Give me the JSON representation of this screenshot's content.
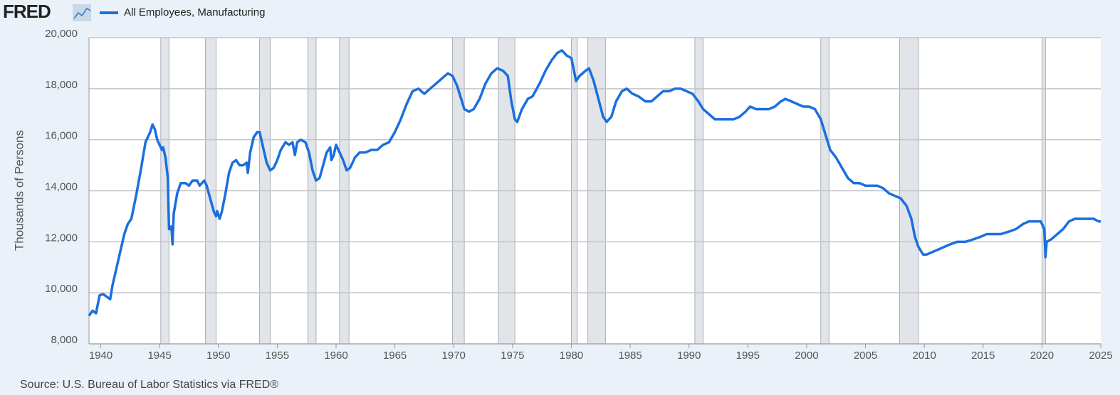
{
  "logo": "FRED",
  "chart_data": {
    "type": "line",
    "y_label": "Thousands of Persons",
    "source": "Source: U.S. Bureau of Labor Statistics via FRED®",
    "xlim": [
      1939,
      2025
    ],
    "xticks": [
      1940,
      1945,
      1950,
      1955,
      1960,
      1965,
      1970,
      1975,
      1980,
      1985,
      1990,
      1995,
      2000,
      2005,
      2010,
      2015,
      2020,
      2025
    ],
    "ylim": [
      8000,
      20000
    ],
    "yticks": [
      {
        "value": 8000,
        "label": "8,000"
      },
      {
        "value": 10000,
        "label": "10,000"
      },
      {
        "value": 12000,
        "label": "12,000"
      },
      {
        "value": 14000,
        "label": "14,000"
      },
      {
        "value": 16000,
        "label": "16,000"
      },
      {
        "value": 18000,
        "label": "18,000"
      },
      {
        "value": 20000,
        "label": "20,000"
      }
    ],
    "grid": true,
    "recession_color": "#e1e4e8",
    "recessions": [
      [
        1945.1,
        1945.8
      ],
      [
        1948.9,
        1949.8
      ],
      [
        1953.5,
        1954.4
      ],
      [
        1957.6,
        1958.3
      ],
      [
        1960.3,
        1961.1
      ],
      [
        1969.9,
        1970.9
      ],
      [
        1973.8,
        1975.2
      ],
      [
        1980.0,
        1980.5
      ],
      [
        1981.4,
        1982.9
      ],
      [
        1990.5,
        1991.2
      ],
      [
        2001.2,
        2001.9
      ],
      [
        2007.9,
        2009.5
      ],
      [
        2020.0,
        2020.3
      ]
    ],
    "series": [
      {
        "name": "All Employees, Manufacturing",
        "color": "#1a6fdf",
        "x": [
          1939.0,
          1939.3,
          1939.6,
          1939.9,
          1940.2,
          1940.5,
          1940.8,
          1941.0,
          1941.5,
          1942.0,
          1942.3,
          1942.6,
          1943.0,
          1943.4,
          1943.8,
          1944.2,
          1944.4,
          1944.6,
          1944.8,
          1945.0,
          1945.2,
          1945.3,
          1945.5,
          1945.7,
          1945.8,
          1945.9,
          1946.0,
          1946.1,
          1946.2,
          1946.5,
          1946.8,
          1947.2,
          1947.5,
          1947.8,
          1948.2,
          1948.4,
          1948.8,
          1949.0,
          1949.3,
          1949.6,
          1949.8,
          1949.9,
          1950.1,
          1950.3,
          1950.6,
          1950.9,
          1951.2,
          1951.5,
          1951.8,
          1952.1,
          1952.4,
          1952.5,
          1952.7,
          1953.0,
          1953.3,
          1953.5,
          1953.8,
          1954.1,
          1954.4,
          1954.7,
          1955.0,
          1955.3,
          1955.7,
          1956.0,
          1956.3,
          1956.5,
          1956.7,
          1957.0,
          1957.4,
          1957.7,
          1958.0,
          1958.3,
          1958.6,
          1958.9,
          1959.2,
          1959.5,
          1959.6,
          1959.8,
          1960.0,
          1960.3,
          1960.6,
          1960.9,
          1961.2,
          1961.6,
          1962.0,
          1962.5,
          1963.0,
          1963.5,
          1964.0,
          1964.5,
          1965.0,
          1965.5,
          1966.0,
          1966.5,
          1967.0,
          1967.5,
          1968.0,
          1968.5,
          1969.0,
          1969.5,
          1969.9,
          1970.3,
          1970.7,
          1970.9,
          1971.3,
          1971.7,
          1972.2,
          1972.7,
          1973.2,
          1973.7,
          1974.2,
          1974.6,
          1974.9,
          1975.2,
          1975.4,
          1975.8,
          1976.3,
          1976.7,
          1977.3,
          1977.8,
          1978.3,
          1978.8,
          1979.2,
          1979.6,
          1980.0,
          1980.4,
          1980.7,
          1981.2,
          1981.5,
          1981.9,
          1982.3,
          1982.7,
          1983.0,
          1983.4,
          1983.8,
          1984.3,
          1984.7,
          1985.2,
          1985.7,
          1986.3,
          1986.8,
          1987.3,
          1987.8,
          1988.3,
          1988.8,
          1989.3,
          1989.8,
          1990.3,
          1990.8,
          1991.2,
          1991.7,
          1992.2,
          1992.7,
          1993.2,
          1993.8,
          1994.3,
          1994.8,
          1995.2,
          1995.7,
          1996.2,
          1996.8,
          1997.3,
          1997.8,
          1998.2,
          1998.7,
          1999.2,
          1999.7,
          2000.2,
          2000.7,
          2001.2,
          2001.6,
          2002.0,
          2002.5,
          2003.0,
          2003.5,
          2004.0,
          2004.5,
          2005.0,
          2005.5,
          2006.0,
          2006.5,
          2007.0,
          2007.5,
          2008.0,
          2008.5,
          2008.9,
          2009.2,
          2009.5,
          2009.9,
          2010.2,
          2010.7,
          2011.2,
          2011.7,
          2012.2,
          2012.8,
          2013.5,
          2014.2,
          2014.8,
          2015.3,
          2015.8,
          2016.5,
          2017.2,
          2017.8,
          2018.4,
          2018.9,
          2019.5,
          2019.9,
          2020.2,
          2020.3,
          2020.4,
          2020.8,
          2021.3,
          2021.8,
          2022.3,
          2022.8,
          2023.4,
          2023.9,
          2024.4,
          2024.8,
          2025.0
        ],
        "values": [
          9100,
          9300,
          9200,
          9900,
          9950,
          9850,
          9750,
          10300,
          11300,
          12300,
          12700,
          12900,
          13800,
          14800,
          15900,
          16300,
          16600,
          16400,
          16000,
          15800,
          15600,
          15700,
          15300,
          14500,
          12500,
          12500,
          12600,
          11900,
          13100,
          13900,
          14300,
          14300,
          14200,
          14400,
          14400,
          14200,
          14400,
          14200,
          13700,
          13200,
          13000,
          13200,
          12900,
          13200,
          13900,
          14700,
          15100,
          15200,
          15000,
          15000,
          15100,
          14700,
          15500,
          16100,
          16300,
          16300,
          15700,
          15100,
          14800,
          14900,
          15200,
          15600,
          15900,
          15800,
          15900,
          15400,
          15900,
          16000,
          15900,
          15500,
          14800,
          14400,
          14500,
          15000,
          15500,
          15700,
          15200,
          15400,
          15800,
          15500,
          15200,
          14800,
          14900,
          15300,
          15500,
          15500,
          15600,
          15600,
          15800,
          15900,
          16300,
          16800,
          17400,
          17900,
          18000,
          17800,
          18000,
          18200,
          18400,
          18600,
          18500,
          18100,
          17500,
          17200,
          17100,
          17200,
          17600,
          18200,
          18600,
          18800,
          18700,
          18500,
          17500,
          16800,
          16700,
          17200,
          17600,
          17700,
          18200,
          18700,
          19100,
          19400,
          19500,
          19300,
          19200,
          18300,
          18500,
          18700,
          18800,
          18300,
          17600,
          16900,
          16700,
          16900,
          17500,
          17900,
          18000,
          17800,
          17700,
          17500,
          17500,
          17700,
          17900,
          17900,
          18000,
          18000,
          17900,
          17800,
          17500,
          17200,
          17000,
          16800,
          16800,
          16800,
          16800,
          16900,
          17100,
          17300,
          17200,
          17200,
          17200,
          17300,
          17500,
          17600,
          17500,
          17400,
          17300,
          17300,
          17200,
          16800,
          16200,
          15600,
          15300,
          14900,
          14500,
          14300,
          14300,
          14200,
          14200,
          14200,
          14100,
          13900,
          13800,
          13700,
          13400,
          12900,
          12200,
          11800,
          11500,
          11500,
          11600,
          11700,
          11800,
          11900,
          12000,
          12000,
          12100,
          12200,
          12300,
          12300,
          12300,
          12400,
          12500,
          12700,
          12800,
          12800,
          12800,
          12500,
          11400,
          12000,
          12100,
          12300,
          12500,
          12800,
          12900,
          12900,
          12900,
          12900,
          12800,
          12800
        ]
      }
    ]
  }
}
